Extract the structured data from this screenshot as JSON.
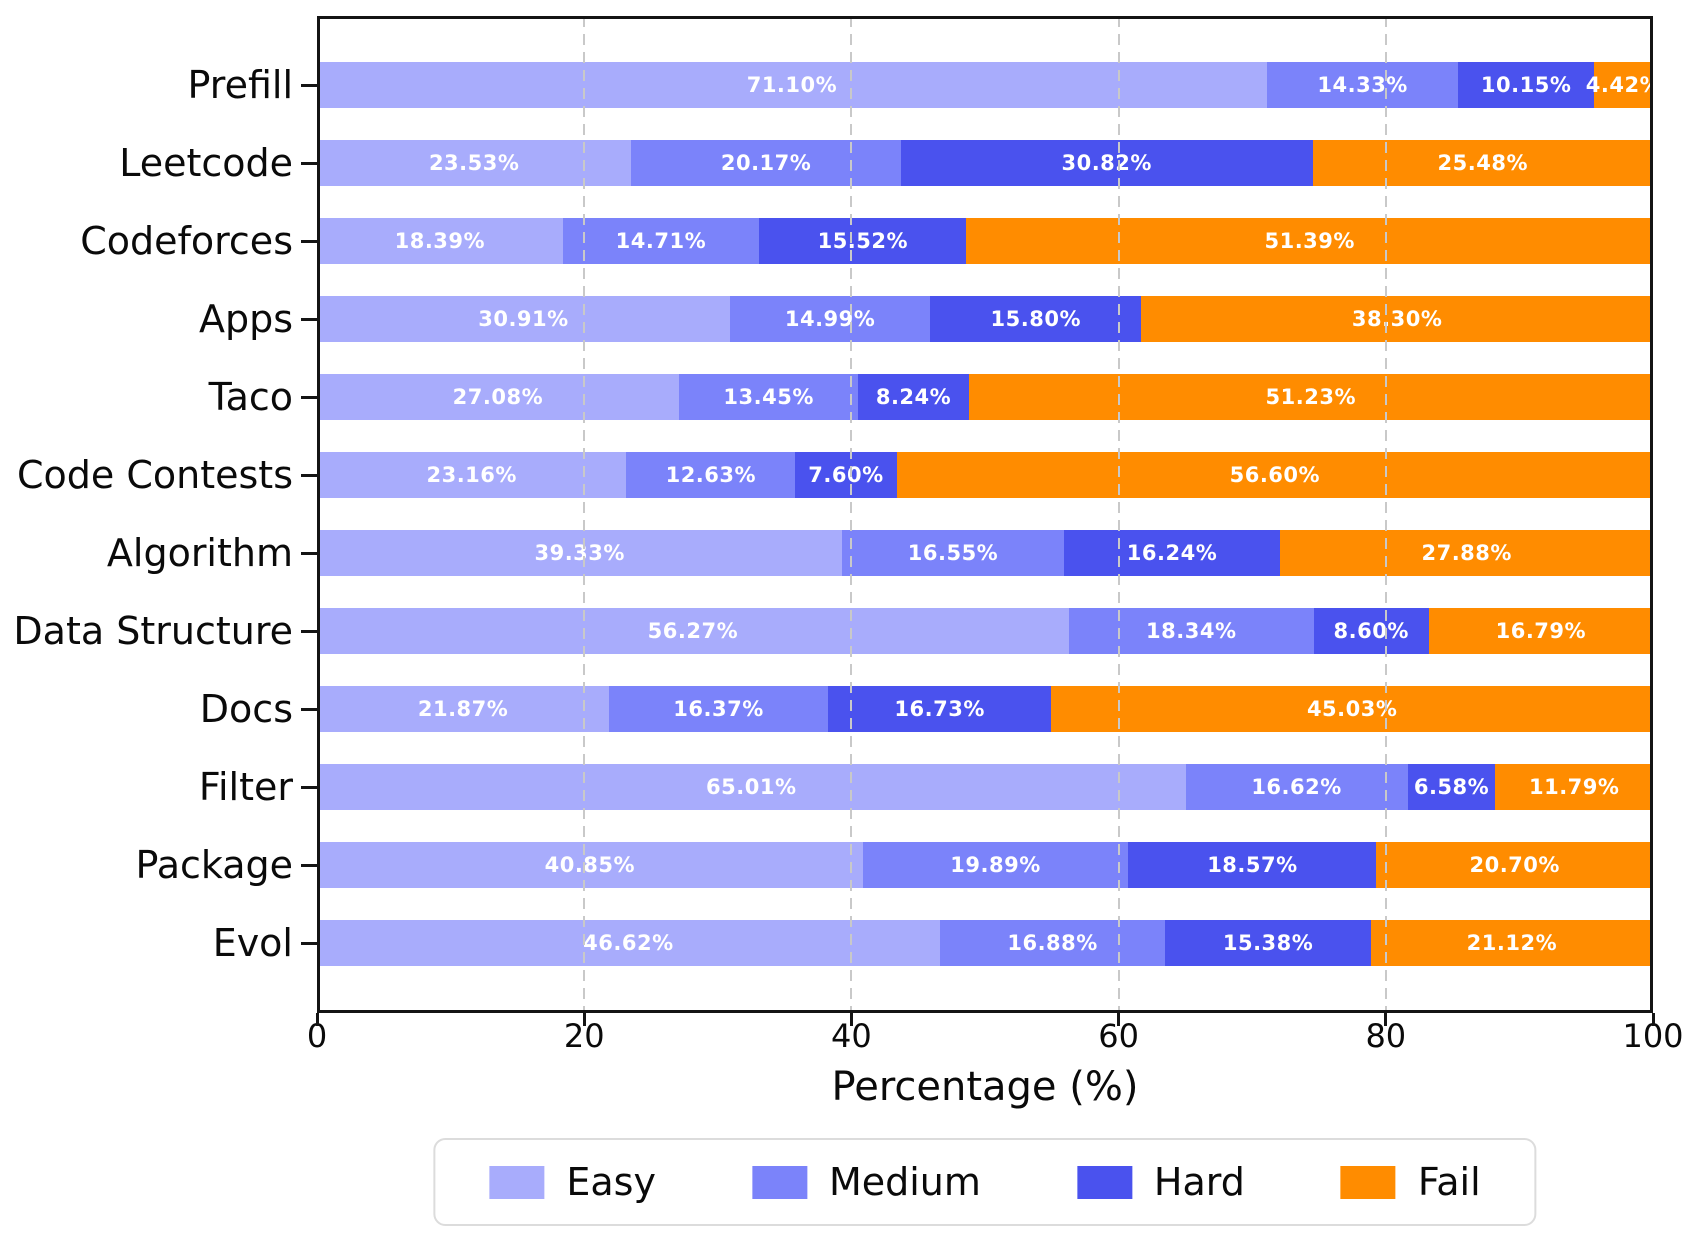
{
  "chart_data": {
    "type": "bar",
    "orientation": "horizontal",
    "stacked": true,
    "title": "",
    "xlabel": "Percentage (%)",
    "ylabel": "",
    "xlim": [
      0,
      100
    ],
    "xticks": [
      0,
      20,
      40,
      60,
      80,
      100
    ],
    "grid": "vertical dashed gridlines at 20/40/60/80 drawn over bars",
    "value_suffix": "%",
    "value_label_decimals": 2,
    "categories": [
      "Prefill",
      "Leetcode",
      "Codeforces",
      "Apps",
      "Taco",
      "Code Contests",
      "Algorithm",
      "Data Structure",
      "Docs",
      "Filter",
      "Package",
      "Evol"
    ],
    "series": [
      {
        "name": "Easy",
        "color": "#a8acfc",
        "values": [
          71.1,
          23.53,
          18.39,
          30.91,
          27.08,
          23.16,
          39.33,
          56.27,
          21.87,
          65.01,
          40.85,
          46.62
        ]
      },
      {
        "name": "Medium",
        "color": "#7b83fa",
        "values": [
          14.33,
          20.17,
          14.71,
          14.99,
          13.45,
          12.63,
          16.55,
          18.34,
          16.37,
          16.62,
          19.89,
          16.88
        ]
      },
      {
        "name": "Hard",
        "color": "#4a52ee",
        "values": [
          10.15,
          30.82,
          15.52,
          15.8,
          8.24,
          7.6,
          16.24,
          8.6,
          16.73,
          6.58,
          18.57,
          15.38
        ]
      },
      {
        "name": "Fail",
        "color": "#ff8c00",
        "values": [
          4.42,
          25.48,
          51.39,
          38.3,
          51.23,
          56.6,
          27.88,
          16.79,
          45.03,
          11.79,
          20.7,
          21.12
        ]
      }
    ],
    "legend": {
      "position": "bottom center",
      "labels": [
        "Easy",
        "Medium",
        "Hard",
        "Fail"
      ]
    }
  }
}
